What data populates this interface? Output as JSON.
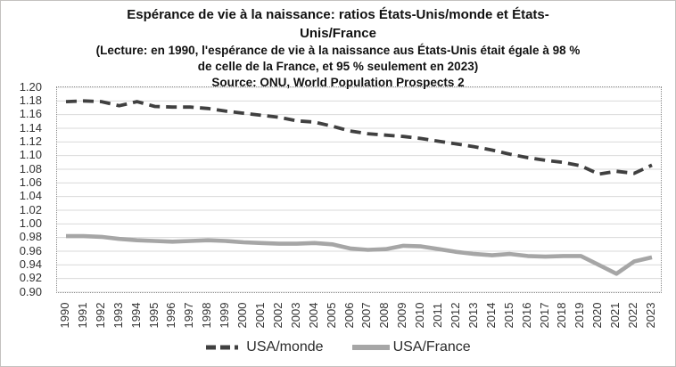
{
  "header": {
    "lines": [
      "Espérance de vie à la naissance: ratios États-Unis/monde et États-",
      "Unis/France",
      "(Lecture: en 1990, l'espérance de vie à la naissance aus États-Unis était égale à 98 %",
      "de celle de  la France, et 95 % seulement en 2023)",
      "Source: ONU, World Population Prospects 2"
    ]
  },
  "colors": {
    "usa_monde_line": "#404040",
    "usa_france_line": "#a6a6a6",
    "gridline": "#d9d9d9",
    "plot_border": "#8a8a8a",
    "axis_label_text": "#333333",
    "title_text": "#111111",
    "outer_border": "#c3c1bf",
    "background": "#ffffff"
  },
  "chart_data": {
    "type": "line",
    "title": "Espérance de vie à la naissance: ratios États-Unis/monde et États-Unis/France",
    "subtitle": "(Lecture: en 1990, l'espérance de vie à la naissance aus États-Unis était égale à 98 % de celle de  la France, et 95 % seulement en 2023)",
    "source": "Source: ONU, World Population Prospects 2",
    "x": [
      1990,
      1991,
      1992,
      1993,
      1994,
      1995,
      1996,
      1997,
      1998,
      1999,
      2000,
      2001,
      2002,
      2003,
      2004,
      2005,
      2006,
      2007,
      2008,
      2009,
      2010,
      2011,
      2012,
      2013,
      2014,
      2015,
      2016,
      2017,
      2018,
      2019,
      2020,
      2021,
      2022,
      2023
    ],
    "series": [
      {
        "name": "USA/monde",
        "style": "dashed",
        "color": "#404040",
        "values": [
          1.179,
          1.18,
          1.179,
          1.173,
          1.179,
          1.172,
          1.171,
          1.171,
          1.169,
          1.165,
          1.162,
          1.159,
          1.156,
          1.151,
          1.149,
          1.143,
          1.136,
          1.132,
          1.13,
          1.128,
          1.125,
          1.121,
          1.117,
          1.113,
          1.108,
          1.102,
          1.097,
          1.093,
          1.09,
          1.085,
          1.073,
          1.077,
          1.074,
          1.086
        ]
      },
      {
        "name": "USA/France",
        "style": "solid",
        "color": "#a6a6a6",
        "values": [
          0.982,
          0.982,
          0.981,
          0.978,
          0.976,
          0.975,
          0.974,
          0.975,
          0.976,
          0.975,
          0.973,
          0.972,
          0.971,
          0.971,
          0.972,
          0.97,
          0.964,
          0.962,
          0.963,
          0.968,
          0.967,
          0.963,
          0.959,
          0.956,
          0.954,
          0.956,
          0.953,
          0.952,
          0.953,
          0.953,
          0.94,
          0.927,
          0.945,
          0.951
        ]
      }
    ],
    "ylim": [
      0.9,
      1.2
    ],
    "ytick_step": 0.02,
    "yticks": [
      "1.20",
      "1.18",
      "1.16",
      "1.14",
      "1.12",
      "1.10",
      "1.08",
      "1.06",
      "1.04",
      "1.02",
      "1.00",
      "0.98",
      "0.96",
      "0.94",
      "0.92",
      "0.90"
    ],
    "grid": true,
    "legend_position": "bottom",
    "legend": [
      "USA/monde",
      "USA/France"
    ]
  }
}
